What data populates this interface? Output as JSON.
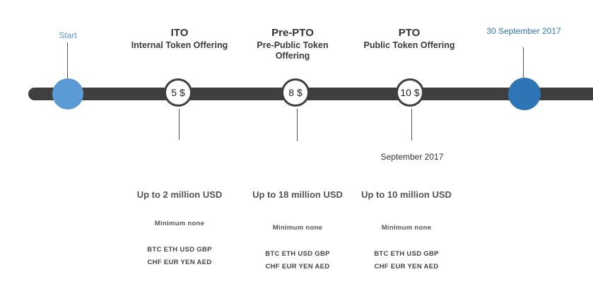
{
  "timeline": {
    "start_label": "Start",
    "end_label": "30 September 2017",
    "colors": {
      "start": "#5b9bd5",
      "end": "#2e75b6",
      "bar": "#3f3f3f"
    }
  },
  "phases": [
    {
      "title": "ITO",
      "subtitle": "Internal Token Offering",
      "price": "5 $",
      "amount": "Up to 2 million USD",
      "minimum": "Minimum  none",
      "currencies_line1": "BTC ETH USD GBP",
      "currencies_line2": "CHF EUR YEN AED"
    },
    {
      "title": "Pre-PTO",
      "subtitle_line1": "Pre-Public Token",
      "subtitle_line2": "Offering",
      "price": "8 $",
      "amount": "Up to 18 million USD",
      "minimum": "Minimum  none",
      "currencies_line1": "BTC ETH USD GBP",
      "currencies_line2": "CHF EUR YEN AED"
    },
    {
      "title": "PTO",
      "subtitle": "Public Token Offering",
      "price": "10 $",
      "date": "September 2017",
      "amount": "Up to 10 million USD",
      "minimum": "Minimum  none",
      "currencies_line1": "BTC ETH USD GBP",
      "currencies_line2": "CHF EUR YEN AED"
    }
  ]
}
